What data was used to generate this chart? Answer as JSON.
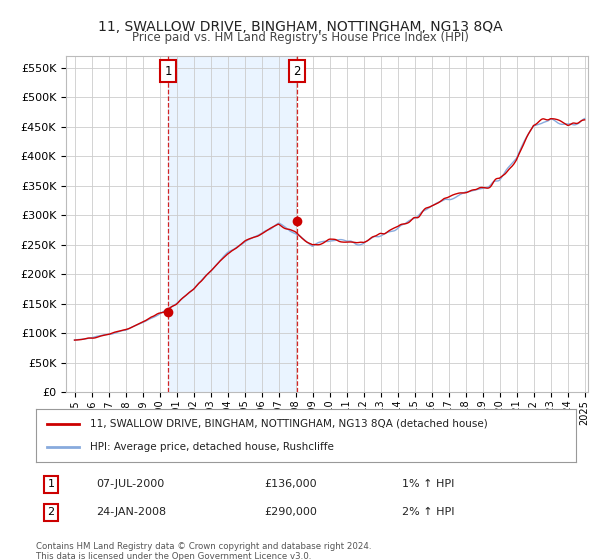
{
  "title": "11, SWALLOW DRIVE, BINGHAM, NOTTINGHAM, NG13 8QA",
  "subtitle": "Price paid vs. HM Land Registry's House Price Index (HPI)",
  "ylabel_ticks": [
    "£0",
    "£50K",
    "£100K",
    "£150K",
    "£200K",
    "£250K",
    "£300K",
    "£350K",
    "£400K",
    "£450K",
    "£500K",
    "£550K"
  ],
  "ytick_values": [
    0,
    50000,
    100000,
    150000,
    200000,
    250000,
    300000,
    350000,
    400000,
    450000,
    500000,
    550000
  ],
  "ylim": [
    0,
    570000
  ],
  "xlim_start": 1994.5,
  "xlim_end": 2025.2,
  "sale1_x": 2000.52,
  "sale1_y": 136000,
  "sale1_label": "1",
  "sale1_date": "07-JUL-2000",
  "sale1_price": "£136,000",
  "sale1_hpi": "1% ↑ HPI",
  "sale2_x": 2008.07,
  "sale2_y": 290000,
  "sale2_label": "2",
  "sale2_date": "24-JAN-2008",
  "sale2_price": "£290,000",
  "sale2_hpi": "2% ↑ HPI",
  "line_color_red": "#cc0000",
  "line_color_blue": "#88aadd",
  "shade_color": "#ddeeff",
  "marker_box_color": "#cc0000",
  "legend_label_red": "11, SWALLOW DRIVE, BINGHAM, NOTTINGHAM, NG13 8QA (detached house)",
  "legend_label_blue": "HPI: Average price, detached house, Rushcliffe",
  "footnote": "Contains HM Land Registry data © Crown copyright and database right 2024.\nThis data is licensed under the Open Government Licence v3.0.",
  "background_color": "#ffffff",
  "grid_color": "#cccccc"
}
